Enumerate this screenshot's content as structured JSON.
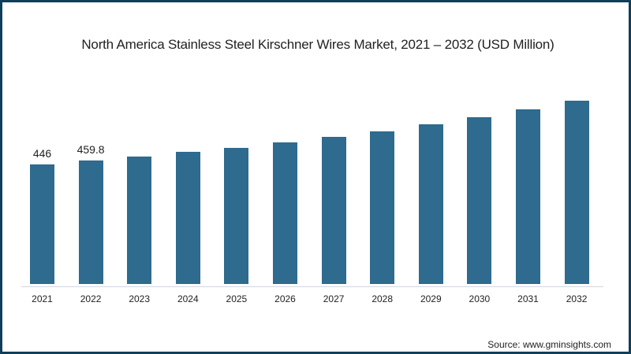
{
  "chart_data": {
    "type": "bar",
    "title": "North America Stainless Steel Kirschner Wires Market, 2021 – 2032 (USD Million)",
    "xlabel": "",
    "ylabel": "",
    "categories": [
      "2021",
      "2022",
      "2023",
      "2024",
      "2025",
      "2026",
      "2027",
      "2028",
      "2029",
      "2030",
      "2031",
      "2032"
    ],
    "values": [
      446,
      459.8,
      475,
      493,
      508,
      528,
      549,
      569,
      596,
      622,
      651,
      684
    ],
    "data_labels": {
      "2021": "446",
      "2022": "459.8"
    },
    "ylim": [
      0,
      766
    ],
    "grid": false,
    "legend": null,
    "bar_color": "#2e6b8e"
  },
  "source": "Source: www.gminsights.com",
  "frame_color": "#0f3f5a"
}
